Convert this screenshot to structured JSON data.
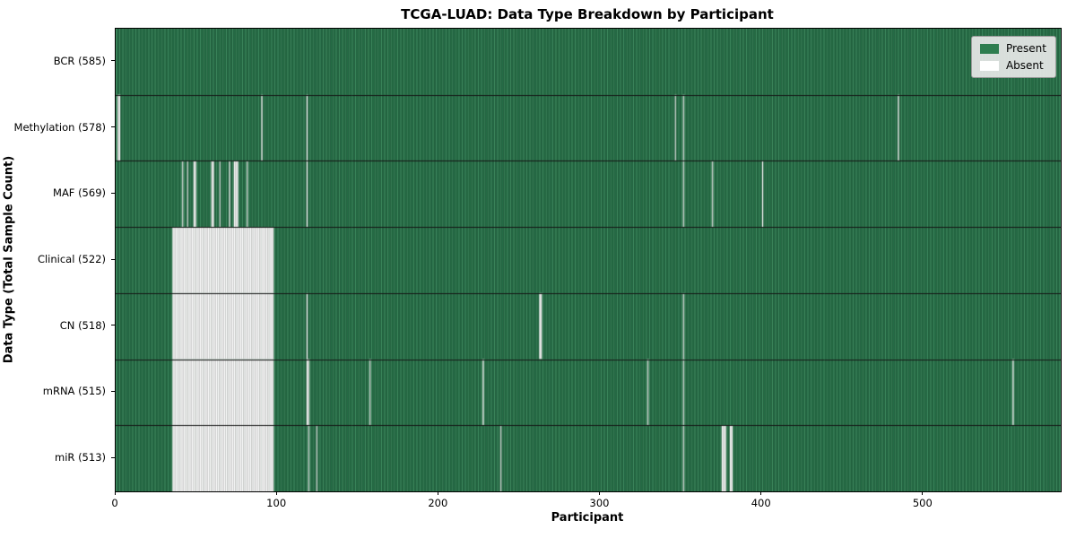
{
  "title": "TCGA-LUAD: Data Type Breakdown by Participant",
  "axes": {
    "xlabel": "Participant",
    "ylabel": "Data Type (Total Sample Count)"
  },
  "legend": {
    "present_label": "Present",
    "absent_label": "Absent"
  },
  "colors": {
    "present": "#2e7d4f",
    "present_stripe_light": "#3f8d61",
    "present_stripe_dark": "#256e46",
    "cell_edge_dark": "#1a4c31",
    "absent": "#ffffff",
    "absent_cell_edge": "#a3a3a3",
    "row_divider": "#151515",
    "legend_bg": "#e8e8e8",
    "legend_border": "#9a9a9a"
  },
  "chart_data": {
    "type": "heatmap",
    "title": "TCGA-LUAD: Data Type Breakdown by Participant",
    "xlabel": "Participant",
    "ylabel": "Data Type (Total Sample Count)",
    "legend_entries": [
      "Present",
      "Absent"
    ],
    "legend_position": "upper right",
    "n_participants": 585,
    "x_ticks": [
      0,
      100,
      200,
      300,
      400,
      500
    ],
    "xlim": [
      0,
      585
    ],
    "rows": [
      {
        "name": "BCR",
        "count": 585,
        "label": "BCR (585)",
        "absent_ranges": []
      },
      {
        "name": "Methylation",
        "count": 578,
        "label": "Methylation (578)",
        "absent_ranges": [
          [
            1,
            2
          ],
          [
            90,
            90
          ],
          [
            118,
            118
          ],
          [
            346,
            346
          ],
          [
            351,
            351
          ],
          [
            484,
            484
          ]
        ]
      },
      {
        "name": "MAF",
        "count": 569,
        "label": "MAF (569)",
        "absent_ranges": [
          [
            41,
            41
          ],
          [
            44,
            44
          ],
          [
            48,
            49
          ],
          [
            59,
            60
          ],
          [
            64,
            64
          ],
          [
            70,
            70
          ],
          [
            73,
            75
          ],
          [
            81,
            81
          ],
          [
            118,
            118
          ],
          [
            351,
            351
          ],
          [
            369,
            369
          ],
          [
            400,
            400
          ]
        ]
      },
      {
        "name": "Clinical",
        "count": 522,
        "label": "Clinical (522)",
        "absent_ranges": [
          [
            35,
            97
          ]
        ]
      },
      {
        "name": "CN",
        "count": 518,
        "label": "CN (518)",
        "absent_ranges": [
          [
            35,
            97
          ],
          [
            118,
            118
          ],
          [
            262,
            263
          ],
          [
            351,
            351
          ]
        ]
      },
      {
        "name": "mRNA",
        "count": 515,
        "label": "mRNA (515)",
        "absent_ranges": [
          [
            35,
            97
          ],
          [
            118,
            119
          ],
          [
            157,
            157
          ],
          [
            227,
            227
          ],
          [
            329,
            329
          ],
          [
            351,
            351
          ],
          [
            555,
            555
          ]
        ]
      },
      {
        "name": "miR",
        "count": 513,
        "label": "miR (513)",
        "absent_ranges": [
          [
            35,
            97
          ],
          [
            119,
            119
          ],
          [
            124,
            124
          ],
          [
            238,
            238
          ],
          [
            351,
            351
          ],
          [
            375,
            377
          ],
          [
            380,
            381
          ]
        ]
      }
    ]
  }
}
